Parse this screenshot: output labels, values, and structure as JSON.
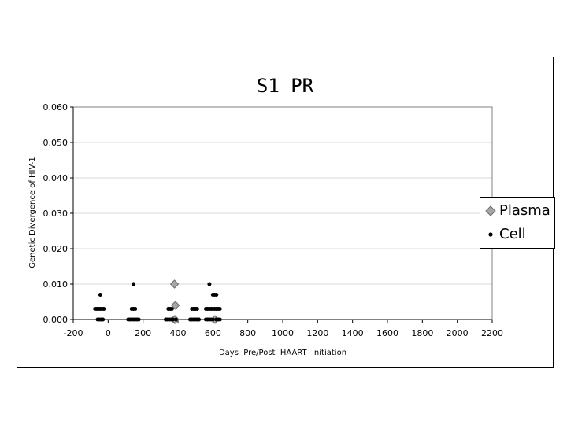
{
  "chart_data": {
    "type": "scatter",
    "title": "S1 PR",
    "xlabel": "Days  Pre/Post  HAART  Initiation",
    "ylabel": "Genetic  Divergence  of  HIV-1",
    "xlim": [
      -200,
      2200
    ],
    "ylim": [
      0,
      0.06
    ],
    "xticks": [
      "-200",
      "0",
      "200",
      "400",
      "600",
      "800",
      "1000",
      "1200",
      "1400",
      "1600",
      "1800",
      "2000",
      "2200"
    ],
    "yticks": [
      "0.000",
      "0.010",
      "0.020",
      "0.030",
      "0.040",
      "0.050",
      "0.060"
    ],
    "grid": "horizontal",
    "legend_position": "right",
    "series": [
      {
        "name": "Plasma",
        "marker": "diamond",
        "color": "#a6a6a6",
        "points": [
          [
            380,
            0.01
          ],
          [
            385,
            0.004
          ],
          [
            380,
            0.0
          ],
          [
            383,
            0.0
          ],
          [
            612,
            0.0
          ]
        ]
      },
      {
        "name": "Cell",
        "marker": "dot",
        "color": "#000000",
        "points": [
          [
            -45,
            0.007
          ],
          [
            -75,
            0.003
          ],
          [
            -65,
            0.003
          ],
          [
            -55,
            0.003
          ],
          [
            -45,
            0.003
          ],
          [
            -35,
            0.003
          ],
          [
            -25,
            0.003
          ],
          [
            -60,
            0.0
          ],
          [
            -50,
            0.0
          ],
          [
            -40,
            0.0
          ],
          [
            -30,
            0.0
          ],
          [
            145,
            0.01
          ],
          [
            135,
            0.003
          ],
          [
            145,
            0.003
          ],
          [
            155,
            0.003
          ],
          [
            115,
            0.0
          ],
          [
            125,
            0.0
          ],
          [
            135,
            0.0
          ],
          [
            145,
            0.0
          ],
          [
            155,
            0.0
          ],
          [
            165,
            0.0
          ],
          [
            175,
            0.0
          ],
          [
            345,
            0.003
          ],
          [
            355,
            0.003
          ],
          [
            365,
            0.003
          ],
          [
            330,
            0.0
          ],
          [
            340,
            0.0
          ],
          [
            350,
            0.0
          ],
          [
            360,
            0.0
          ],
          [
            370,
            0.0
          ],
          [
            388,
            0.0
          ],
          [
            480,
            0.003
          ],
          [
            490,
            0.003
          ],
          [
            500,
            0.003
          ],
          [
            510,
            0.003
          ],
          [
            470,
            0.0
          ],
          [
            480,
            0.0
          ],
          [
            490,
            0.0
          ],
          [
            500,
            0.0
          ],
          [
            510,
            0.0
          ],
          [
            520,
            0.0
          ],
          [
            580,
            0.01
          ],
          [
            600,
            0.007
          ],
          [
            610,
            0.007
          ],
          [
            620,
            0.007
          ],
          [
            560,
            0.003
          ],
          [
            570,
            0.003
          ],
          [
            580,
            0.003
          ],
          [
            590,
            0.003
          ],
          [
            600,
            0.003
          ],
          [
            610,
            0.003
          ],
          [
            620,
            0.003
          ],
          [
            630,
            0.003
          ],
          [
            640,
            0.003
          ],
          [
            560,
            0.0
          ],
          [
            570,
            0.0
          ],
          [
            580,
            0.0
          ],
          [
            590,
            0.0
          ],
          [
            600,
            0.0
          ],
          [
            620,
            0.0
          ],
          [
            630,
            0.0
          ],
          [
            640,
            0.0
          ]
        ]
      }
    ]
  },
  "legend": {
    "items": [
      {
        "label": "Plasma",
        "icon": "diamond-marker"
      },
      {
        "label": "Cell",
        "icon": "dot-marker"
      }
    ]
  }
}
